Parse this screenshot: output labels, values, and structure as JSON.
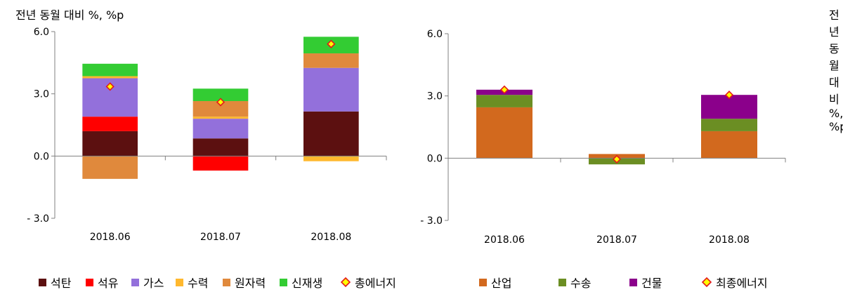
{
  "chart_data": [
    {
      "type": "bar",
      "stacked": true,
      "unit_label": "전년 동월 대비 %, %p",
      "categories": [
        "2018.06",
        "2018.07",
        "2018.08"
      ],
      "ylim": [
        -3.0,
        6.0
      ],
      "yticks": [
        "6.0",
        "3.0",
        "0.0",
        "- 3.0"
      ],
      "ytick_values": [
        6.0,
        3.0,
        0.0,
        -3.0
      ],
      "series": [
        {
          "name": "석탄",
          "color": "#5c1010",
          "values": [
            1.2,
            0.85,
            2.15
          ]
        },
        {
          "name": "석유",
          "color": "#ff0000",
          "values": [
            0.7,
            -0.7,
            0.0
          ]
        },
        {
          "name": "가스",
          "color": "#9370db",
          "values": [
            1.85,
            0.95,
            2.1
          ]
        },
        {
          "name": "수력",
          "color": "#ffb82e",
          "values": [
            0.1,
            0.1,
            -0.25
          ]
        },
        {
          "name": "원자력",
          "color": "#e0893c",
          "values": [
            -1.1,
            0.75,
            0.7
          ]
        },
        {
          "name": "신재생",
          "color": "#33cc33",
          "values": [
            0.6,
            0.6,
            0.8
          ]
        }
      ],
      "total": {
        "name": "총에너지",
        "values": [
          3.35,
          2.6,
          5.4
        ]
      },
      "legend_position": "bottom"
    },
    {
      "type": "bar",
      "stacked": true,
      "unit_label": "전년 동월 대비 %, %p",
      "categories": [
        "2018.06",
        "2018.07",
        "2018.08"
      ],
      "ylim": [
        -3.0,
        6.0
      ],
      "yticks": [
        "6.0",
        "3.0",
        "0.0",
        "- 3.0"
      ],
      "ytick_values": [
        6.0,
        3.0,
        0.0,
        -3.0
      ],
      "series": [
        {
          "name": "산업",
          "color": "#d2691e",
          "values": [
            2.45,
            0.2,
            1.3
          ]
        },
        {
          "name": "수송",
          "color": "#6b8e23",
          "values": [
            0.6,
            -0.3,
            0.6
          ]
        },
        {
          "name": "건물",
          "color": "#8b008b",
          "values": [
            0.25,
            0.0,
            1.15
          ]
        }
      ],
      "total": {
        "name": "최종에너지",
        "values": [
          3.3,
          -0.05,
          3.05
        ]
      },
      "legend_position": "bottom"
    }
  ],
  "total_marker": {
    "fill": "#ffff00",
    "stroke": "#e31a1c"
  }
}
